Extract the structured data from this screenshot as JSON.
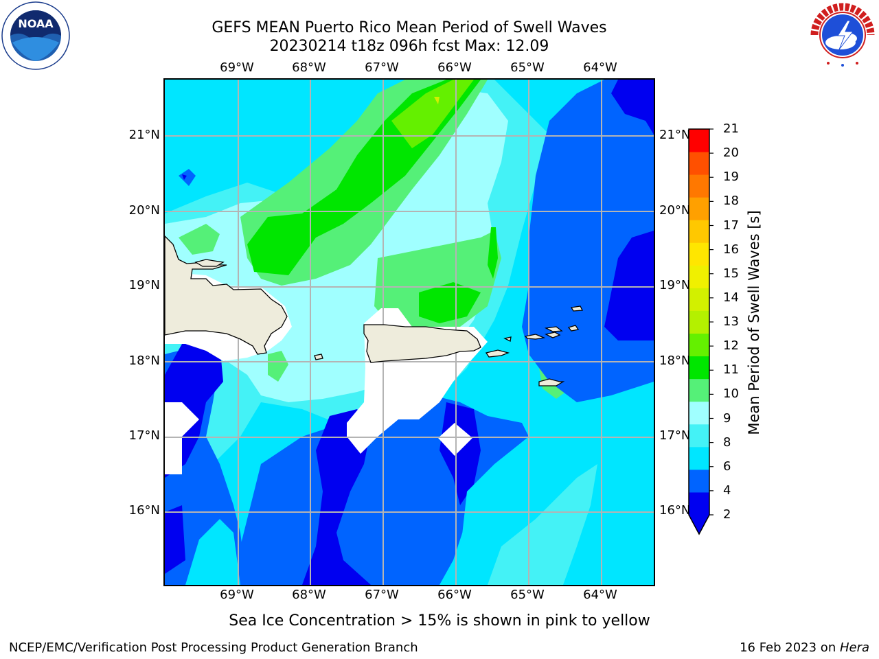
{
  "title": {
    "line1": "GEFS MEAN Puerto Rico Mean Period of Swell Waves",
    "line2": "20230214 t18z 096h fcst   Max: 12.09"
  },
  "map": {
    "lon_ticks": [
      "69°W",
      "68°W",
      "67°W",
      "66°W",
      "65°W",
      "64°W"
    ],
    "lat_ticks": [
      "21°N",
      "20°N",
      "19°N",
      "18°N",
      "17°N",
      "16°N"
    ],
    "lon_range": [
      -70.0,
      -63.3
    ],
    "lat_range": [
      15.0,
      21.7
    ]
  },
  "colorbar": {
    "label": "Mean Period of Swell Waves [s]",
    "ticks": [
      "21",
      "20",
      "19",
      "18",
      "17",
      "16",
      "15",
      "14",
      "13",
      "12",
      "11",
      "10",
      "9",
      "8",
      "6",
      "4",
      "2"
    ],
    "colors": [
      "#0000f0",
      "#0064ff",
      "#00e6ff",
      "#44f2f6",
      "#a0ffff",
      "#55f078",
      "#00e600",
      "#64f000",
      "#b4f000",
      "#d2f000",
      "#f0f000",
      "#ffe600",
      "#ffc800",
      "#ffa000",
      "#ff7800",
      "#ff5000",
      "#ff0000"
    ]
  },
  "footnote": "Sea Ice Concentration > 15% is shown in pink to yellow",
  "footer": {
    "left": "NCEP/EMC/Verification Post Processing Product Generation Branch",
    "date": "16 Feb 2023 on ",
    "machine": "Hera"
  },
  "logos": {
    "noaa_text": "NOAA",
    "noaa_ring_text": "NATIONAL OCEANIC AND ATMOSPHERIC ADMINISTRATION · U.S. DEPARTMENT OF COMMERCE",
    "nws_ring_text": "NATIONAL WEATHER SERVICE"
  }
}
